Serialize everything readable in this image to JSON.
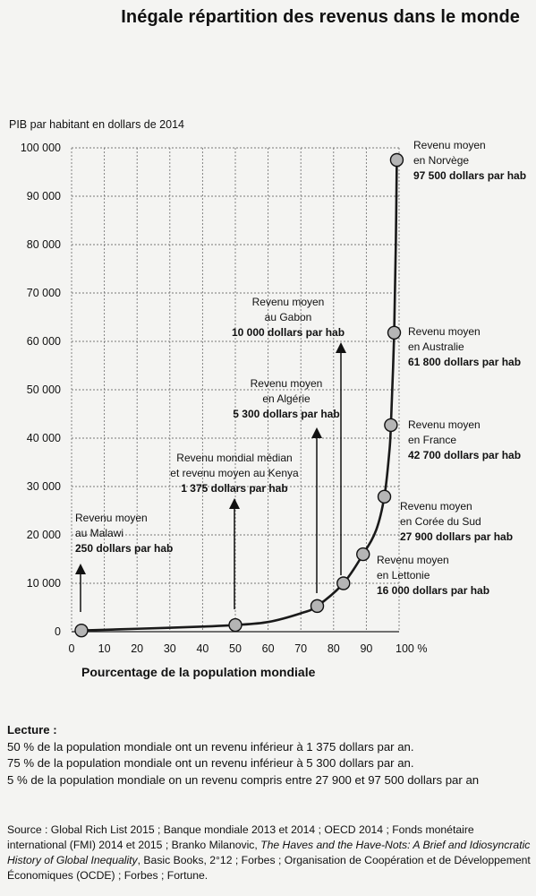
{
  "title": "Inégale répartition des revenus dans le monde",
  "chart_data": {
    "type": "line",
    "ylabel": "PIB par habitant en dollars de 2014",
    "xlabel": "Pourcentage de la population mondiale",
    "xlim": [
      0,
      100
    ],
    "ylim": [
      0,
      100000
    ],
    "x_ticks": [
      0,
      10,
      20,
      30,
      40,
      50,
      60,
      70,
      80,
      90,
      100
    ],
    "x_tick_labels": [
      "0",
      "10",
      "20",
      "30",
      "40",
      "50",
      "60",
      "70",
      "80",
      "90",
      "100 %"
    ],
    "y_ticks": [
      0,
      10000,
      20000,
      30000,
      40000,
      50000,
      60000,
      70000,
      80000,
      90000,
      100000
    ],
    "y_tick_labels": [
      "0",
      "10 000",
      "20 000",
      "30 000",
      "40 000",
      "50 000",
      "60 000",
      "70 000",
      "80 000",
      "90 000",
      "100 000"
    ],
    "grid": true,
    "line_color": "#1a1a1a",
    "marker_color": "#b5b5b5",
    "curve": [
      {
        "x": 3,
        "y": 250
      },
      {
        "x": 20,
        "y": 600
      },
      {
        "x": 40,
        "y": 1050
      },
      {
        "x": 50,
        "y": 1375
      },
      {
        "x": 60,
        "y": 2000
      },
      {
        "x": 70,
        "y": 3800
      },
      {
        "x": 75,
        "y": 5300
      },
      {
        "x": 83,
        "y": 10000
      },
      {
        "x": 89,
        "y": 16000
      },
      {
        "x": 93,
        "y": 21000
      },
      {
        "x": 95.5,
        "y": 27900
      },
      {
        "x": 97,
        "y": 37000
      },
      {
        "x": 97.5,
        "y": 42700
      },
      {
        "x": 98.5,
        "y": 61800
      },
      {
        "x": 99,
        "y": 80000
      },
      {
        "x": 99.3,
        "y": 97500
      }
    ],
    "points": [
      {
        "x": 3,
        "y": 250
      },
      {
        "x": 50,
        "y": 1375
      },
      {
        "x": 75,
        "y": 5300
      },
      {
        "x": 83,
        "y": 10000
      },
      {
        "x": 89,
        "y": 16000
      },
      {
        "x": 95.5,
        "y": 27900
      },
      {
        "x": 97.5,
        "y": 42700
      },
      {
        "x": 98.5,
        "y": 61800
      },
      {
        "x": 99.3,
        "y": 97500
      }
    ],
    "annotations": [
      {
        "lines": [
          "Revenu moyen",
          "au Malawi"
        ],
        "bold": "250 dollars par hab",
        "align": "start",
        "arrow": true
      },
      {
        "lines": [
          "Revenu mondial médian",
          "et revenu moyen au Kenya"
        ],
        "bold": "1 375 dollars par hab",
        "align": "middle",
        "arrow": true
      },
      {
        "lines": [
          "Revenu moyen",
          "en Algérie"
        ],
        "bold": "5 300 dollars par hab",
        "align": "middle",
        "arrow": true
      },
      {
        "lines": [
          "Revenu moyen",
          "au Gabon"
        ],
        "bold": "10 000 dollars par hab",
        "align": "middle",
        "arrow": true
      },
      {
        "lines": [
          "Revenu moyen",
          "en Lettonie"
        ],
        "bold": "16 000 dollars par hab",
        "align": "start",
        "arrow": false
      },
      {
        "lines": [
          "Revenu moyen",
          "en Corée du Sud"
        ],
        "bold": "27 900 dollars par hab",
        "align": "start",
        "arrow": false
      },
      {
        "lines": [
          "Revenu moyen",
          "en France"
        ],
        "bold": "42 700 dollars par hab",
        "align": "start",
        "arrow": false
      },
      {
        "lines": [
          "Revenu moyen",
          "en Australie"
        ],
        "bold": "61 800 dollars par hab",
        "align": "start",
        "arrow": false
      },
      {
        "lines": [
          "Revenu moyen",
          "en Norvège"
        ],
        "bold": "97 500 dollars par hab",
        "align": "start",
        "arrow": false
      }
    ]
  },
  "reading": {
    "heading": "Lecture :",
    "lines": [
      "50 % de la population mondiale ont un revenu inférieur à 1 375 dollars par an.",
      "75 % de la population mondiale ont un revenu inférieur à 5 300 dollars par an.",
      "5 % de la population mondiale on un revenu compris entre 27 900 et 97 500 dollars par an"
    ]
  },
  "source": {
    "part1": "Source : Global Rich List 2015 ; Banque mondiale 2013 et 2014 ; OECD 2014 ; Fonds monétaire international (FMI) 2014 et 2015 ; Branko Milanovic, ",
    "book": "The Haves and the Have-Nots: A Brief and Idiosyncratic History of Global Inequality",
    "part2": ", Basic Books, 2°12 ; Forbes ; Organisation de Coopération et de Développement Économiques (OCDE) ; Forbes ; Fortune."
  }
}
